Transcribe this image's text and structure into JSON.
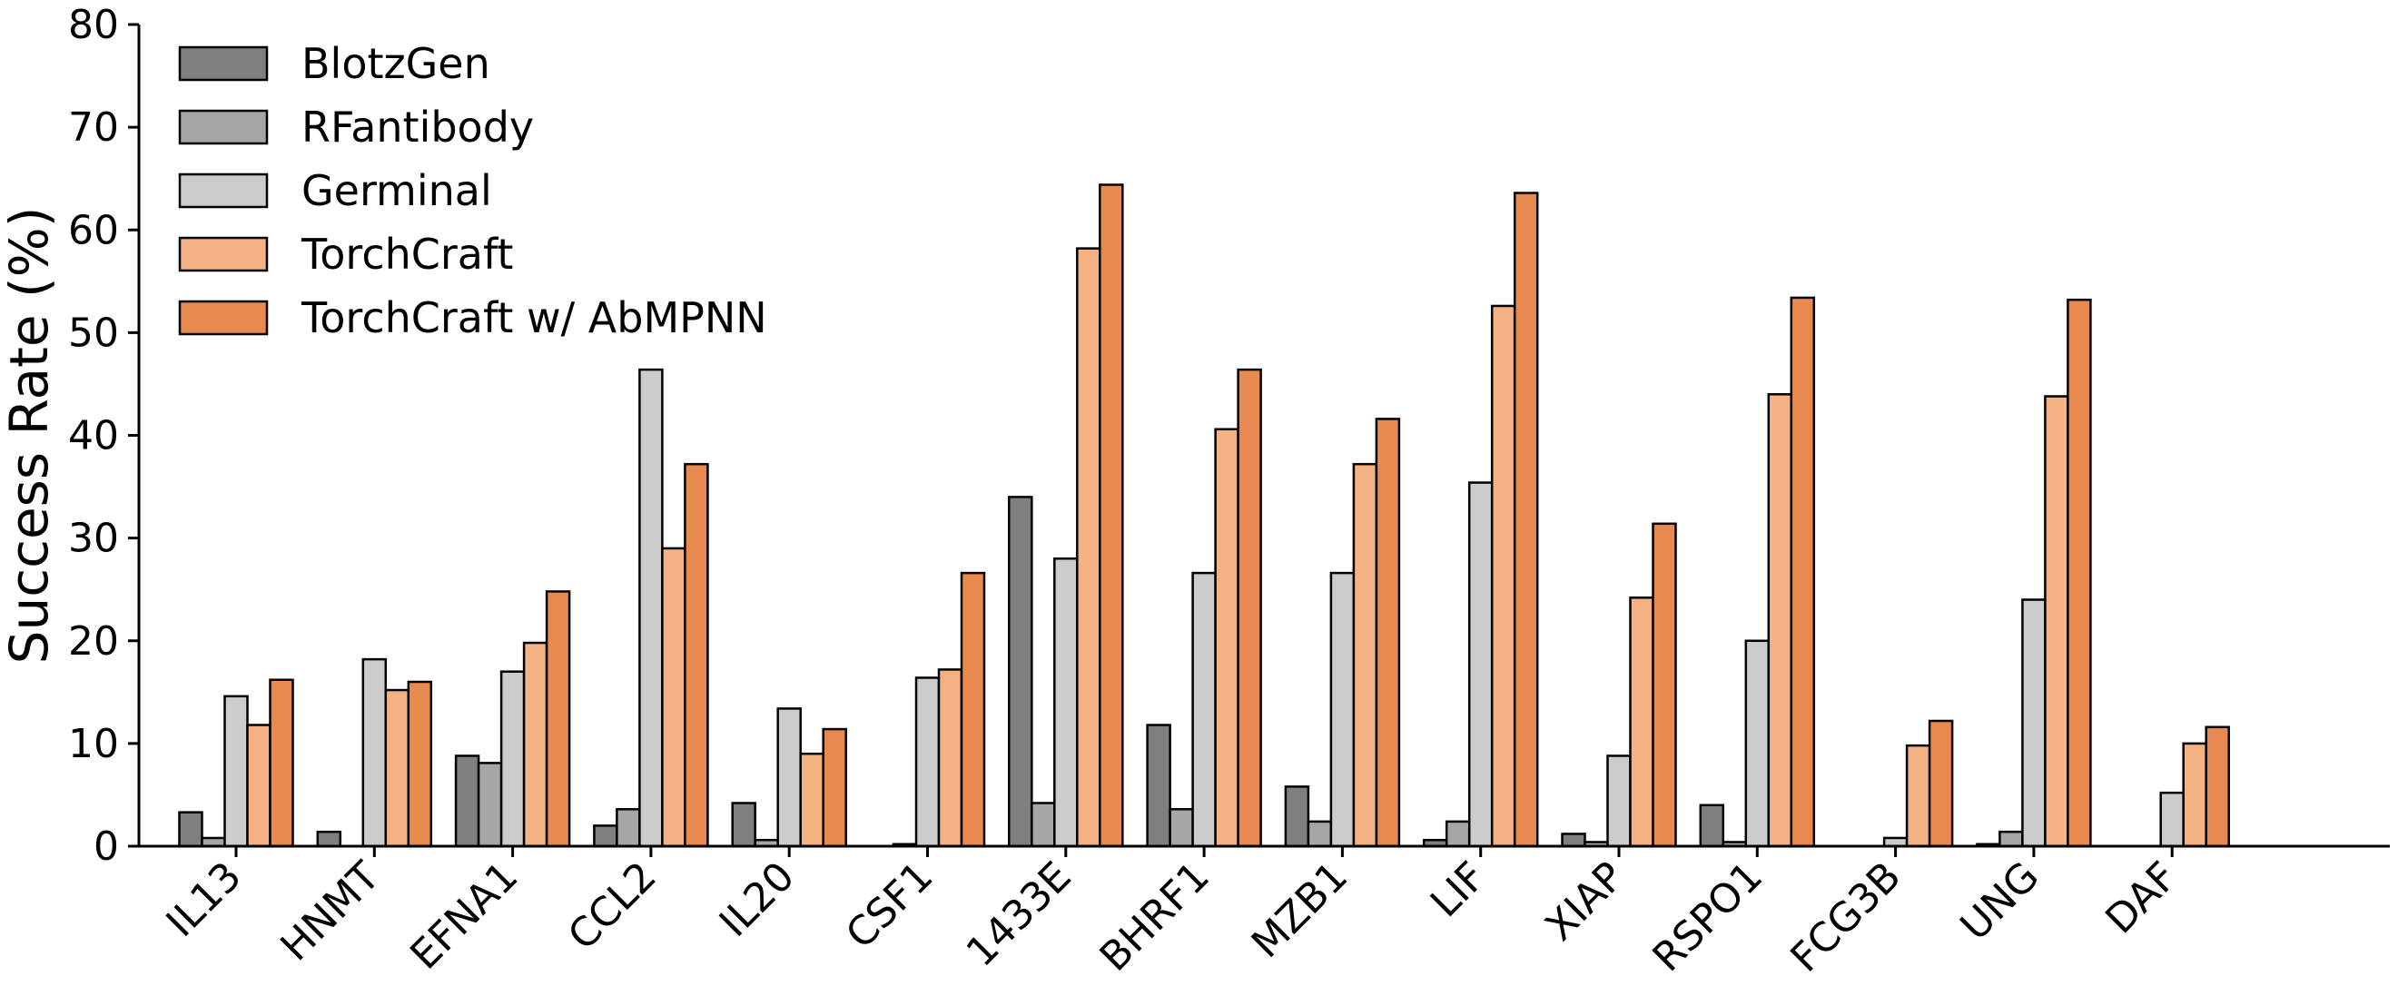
{
  "chart_data": {
    "type": "bar",
    "title": "",
    "xlabel": "",
    "ylabel": "Success Rate (%)",
    "ylim": [
      0,
      80
    ],
    "yticks": [
      0,
      10,
      20,
      30,
      40,
      50,
      60,
      70,
      80
    ],
    "grid": false,
    "legend_position": "top-left",
    "categories": [
      "IL13",
      "HNMT",
      "EFNA1",
      "CCL2",
      "IL20",
      "CSF1",
      "1433E",
      "BHRF1",
      "MZB1",
      "LIF",
      "XIAP",
      "RSPO1",
      "FCG3B",
      "UNG",
      "DAF"
    ],
    "series": [
      {
        "name": "BlotzGen",
        "color": "#7f7f7f",
        "values": [
          3.3,
          1.4,
          8.8,
          2.0,
          4.2,
          0.0,
          34.0,
          11.8,
          5.8,
          0.6,
          1.2,
          4.0,
          0.0,
          0.2,
          0.0
        ]
      },
      {
        "name": "RFantibody",
        "color": "#a6a6a6",
        "values": [
          0.8,
          0.0,
          8.1,
          3.6,
          0.6,
          0.2,
          4.2,
          3.6,
          2.4,
          2.4,
          0.4,
          0.4,
          0.0,
          1.4,
          0.0
        ]
      },
      {
        "name": "Germinal",
        "color": "#cccccc",
        "values": [
          14.6,
          18.2,
          17.0,
          46.4,
          13.4,
          16.4,
          28.0,
          26.6,
          26.6,
          35.4,
          8.8,
          20.0,
          0.8,
          24.0,
          5.2
        ]
      },
      {
        "name": "TorchCraft",
        "color": "#f4b183",
        "values": [
          11.8,
          15.2,
          19.8,
          29.0,
          9.0,
          17.2,
          58.2,
          40.6,
          37.2,
          52.6,
          24.2,
          44.0,
          9.8,
          43.8,
          10.0
        ]
      },
      {
        "name": "TorchCraft w/ AbMPNN",
        "color": "#e8894f",
        "values": [
          16.2,
          16.0,
          24.8,
          37.2,
          11.4,
          26.6,
          64.4,
          46.4,
          41.6,
          63.6,
          31.4,
          53.4,
          12.2,
          53.2,
          11.6
        ]
      }
    ]
  }
}
